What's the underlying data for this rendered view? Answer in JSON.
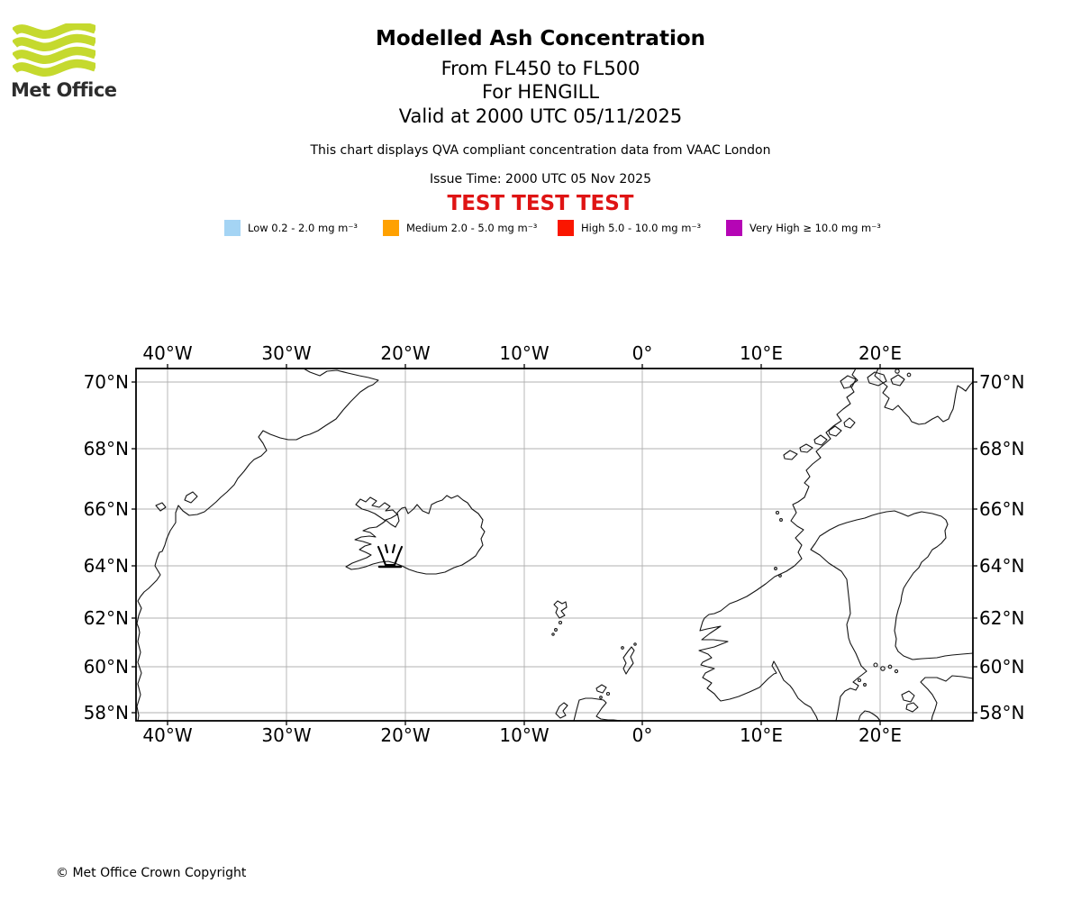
{
  "header": {
    "brand": "Met Office",
    "title": "Modelled Ash Concentration",
    "subtitles": [
      "From FL450 to FL500",
      "For HENGILL",
      "Valid at 2000 UTC 05/11/2025"
    ],
    "note": "This chart displays QVA compliant concentration data from VAAC London",
    "issue_time": "Issue Time: 2000 UTC 05 Nov 2025",
    "test_banner": "TEST TEST TEST"
  },
  "legend": {
    "items": [
      {
        "label": "Low 0.2 - 2.0 mg m⁻³",
        "color": "#a4d4f4"
      },
      {
        "label": "Medium 2.0 - 5.0 mg m⁻³",
        "color": "#ffa101"
      },
      {
        "label": "High 5.0 - 10.0 mg m⁻³",
        "color": "#fa1600"
      },
      {
        "label": "Very High ≥ 10.0 mg m⁻³",
        "color": "#b505b5"
      }
    ]
  },
  "map": {
    "lon_ticks": [
      "40°W",
      "30°W",
      "20°W",
      "10°W",
      "0°",
      "10°E",
      "20°E"
    ],
    "lat_ticks": [
      "70°N",
      "68°N",
      "66°N",
      "64°N",
      "62°N",
      "60°N",
      "58°N"
    ],
    "volcano": "HENGILL"
  },
  "footer": {
    "copyright": "© Met Office Crown Copyright"
  },
  "colors": {
    "test_text": "#df1414",
    "logo_green": "#c5d92e"
  }
}
